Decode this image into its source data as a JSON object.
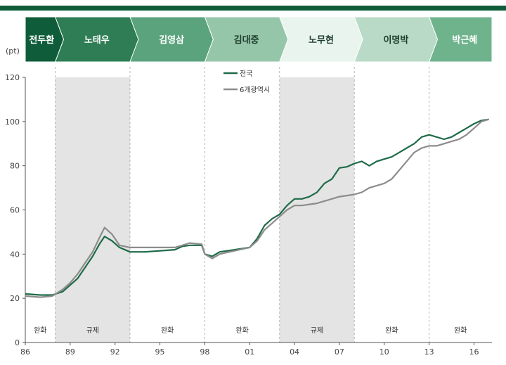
{
  "eras": [
    {
      "name": "전두환",
      "color": "#0f5c3a",
      "text_color": "#ffffff"
    },
    {
      "name": "노태우",
      "color": "#2e7d55",
      "text_color": "#ffffff"
    },
    {
      "name": "김영삼",
      "color": "#5aa37c",
      "text_color": "#ffffff"
    },
    {
      "name": "김대중",
      "color": "#95c6aa",
      "text_color": "#1f3d2c"
    },
    {
      "name": "노무현",
      "color": "#e9f4ee",
      "text_color": "#1f3d2c"
    },
    {
      "name": "이명박",
      "color": "#b8dac6",
      "text_color": "#1f3d2c"
    },
    {
      "name": "박근혜",
      "color": "#6fb38d",
      "text_color": "#ffffff"
    }
  ],
  "chart_data": {
    "type": "line",
    "ylabel": "(pt)",
    "ylim": [
      0,
      120
    ],
    "yticks": [
      0,
      20,
      40,
      60,
      80,
      100,
      120
    ],
    "xlim": [
      1986,
      2017.2
    ],
    "xticks": [
      {
        "value": 1986,
        "label": "86"
      },
      {
        "value": 1989,
        "label": "89"
      },
      {
        "value": 1992,
        "label": "92"
      },
      {
        "value": 1995,
        "label": "95"
      },
      {
        "value": 1998,
        "label": "98"
      },
      {
        "value": 2001,
        "label": "01"
      },
      {
        "value": 2004,
        "label": "04"
      },
      {
        "value": 2007,
        "label": "07"
      },
      {
        "value": 2010,
        "label": "10"
      },
      {
        "value": 2013,
        "label": "13"
      },
      {
        "value": 2016,
        "label": "16"
      }
    ],
    "period_boundaries": [
      1986,
      1988.0,
      1993.0,
      1998.0,
      2003.0,
      2008.0,
      2013.0,
      2017.2
    ],
    "policy_periods": [
      {
        "label": "완화",
        "shaded": false
      },
      {
        "label": "규제",
        "shaded": true
      },
      {
        "label": "완화",
        "shaded": false
      },
      {
        "label": "완화",
        "shaded": false
      },
      {
        "label": "규제",
        "shaded": true
      },
      {
        "label": "완화",
        "shaded": false
      },
      {
        "label": "완화",
        "shaded": false
      }
    ],
    "legend_position": "top-center",
    "series": [
      {
        "name": "전국",
        "color": "#1e6b47",
        "x": [
          1986,
          1987,
          1987.8,
          1988.5,
          1989,
          1989.5,
          1990,
          1990.5,
          1991,
          1991.3,
          1991.8,
          1992.3,
          1993,
          1994,
          1995,
          1996,
          1996.5,
          1997,
          1997.8,
          1998,
          1998.5,
          1999,
          2000,
          2001,
          2001.5,
          2002,
          2002.5,
          2003,
          2003.5,
          2004,
          2004.5,
          2005,
          2005.5,
          2006,
          2006.5,
          2007,
          2007.5,
          2008,
          2008.5,
          2009,
          2009.5,
          2010,
          2010.5,
          2011,
          2011.5,
          2012,
          2012.5,
          2013,
          2013.5,
          2014,
          2014.5,
          2015,
          2015.5,
          2016,
          2016.5,
          2017
        ],
        "values": [
          22,
          21.5,
          21.5,
          23,
          26,
          29,
          34,
          39,
          45,
          48,
          46,
          43,
          41,
          41,
          41.5,
          42,
          43.5,
          44,
          44,
          40,
          39,
          41,
          42,
          43,
          47,
          53,
          56,
          58,
          62,
          65,
          65,
          66,
          68,
          72,
          74,
          79,
          79.5,
          81,
          82,
          80,
          82,
          83,
          84,
          86,
          88,
          90,
          93,
          94,
          93,
          92,
          93,
          95,
          97,
          99,
          100.5,
          101
        ]
      },
      {
        "name": "6개광역시",
        "color": "#8c8c8c",
        "x": [
          1986,
          1987,
          1987.8,
          1988.5,
          1989,
          1989.5,
          1990,
          1990.5,
          1991,
          1991.3,
          1991.8,
          1992.3,
          1993,
          1994,
          1995,
          1996,
          1996.5,
          1997,
          1997.8,
          1998,
          1998.5,
          1999,
          2000,
          2001,
          2001.5,
          2002,
          2002.5,
          2003,
          2003.5,
          2004,
          2004.5,
          2005,
          2005.5,
          2006,
          2006.5,
          2007,
          2007.5,
          2008,
          2008.5,
          2009,
          2009.5,
          2010,
          2010.5,
          2011,
          2011.5,
          2012,
          2012.5,
          2013,
          2013.5,
          2014,
          2014.5,
          2015,
          2015.5,
          2016,
          2016.5,
          2017
        ],
        "values": [
          21,
          20.5,
          21,
          24,
          27,
          31,
          36,
          41,
          48,
          52,
          49,
          44,
          43,
          43,
          43,
          43,
          44,
          45,
          44.5,
          40,
          38,
          40,
          41.5,
          43,
          46,
          51,
          54,
          57,
          60,
          62,
          62,
          62.5,
          63,
          64,
          65,
          66,
          66.5,
          67,
          68,
          70,
          71,
          72,
          74,
          78,
          82,
          86,
          88,
          89,
          89,
          90,
          91,
          92,
          94,
          97,
          100,
          101
        ]
      }
    ]
  }
}
